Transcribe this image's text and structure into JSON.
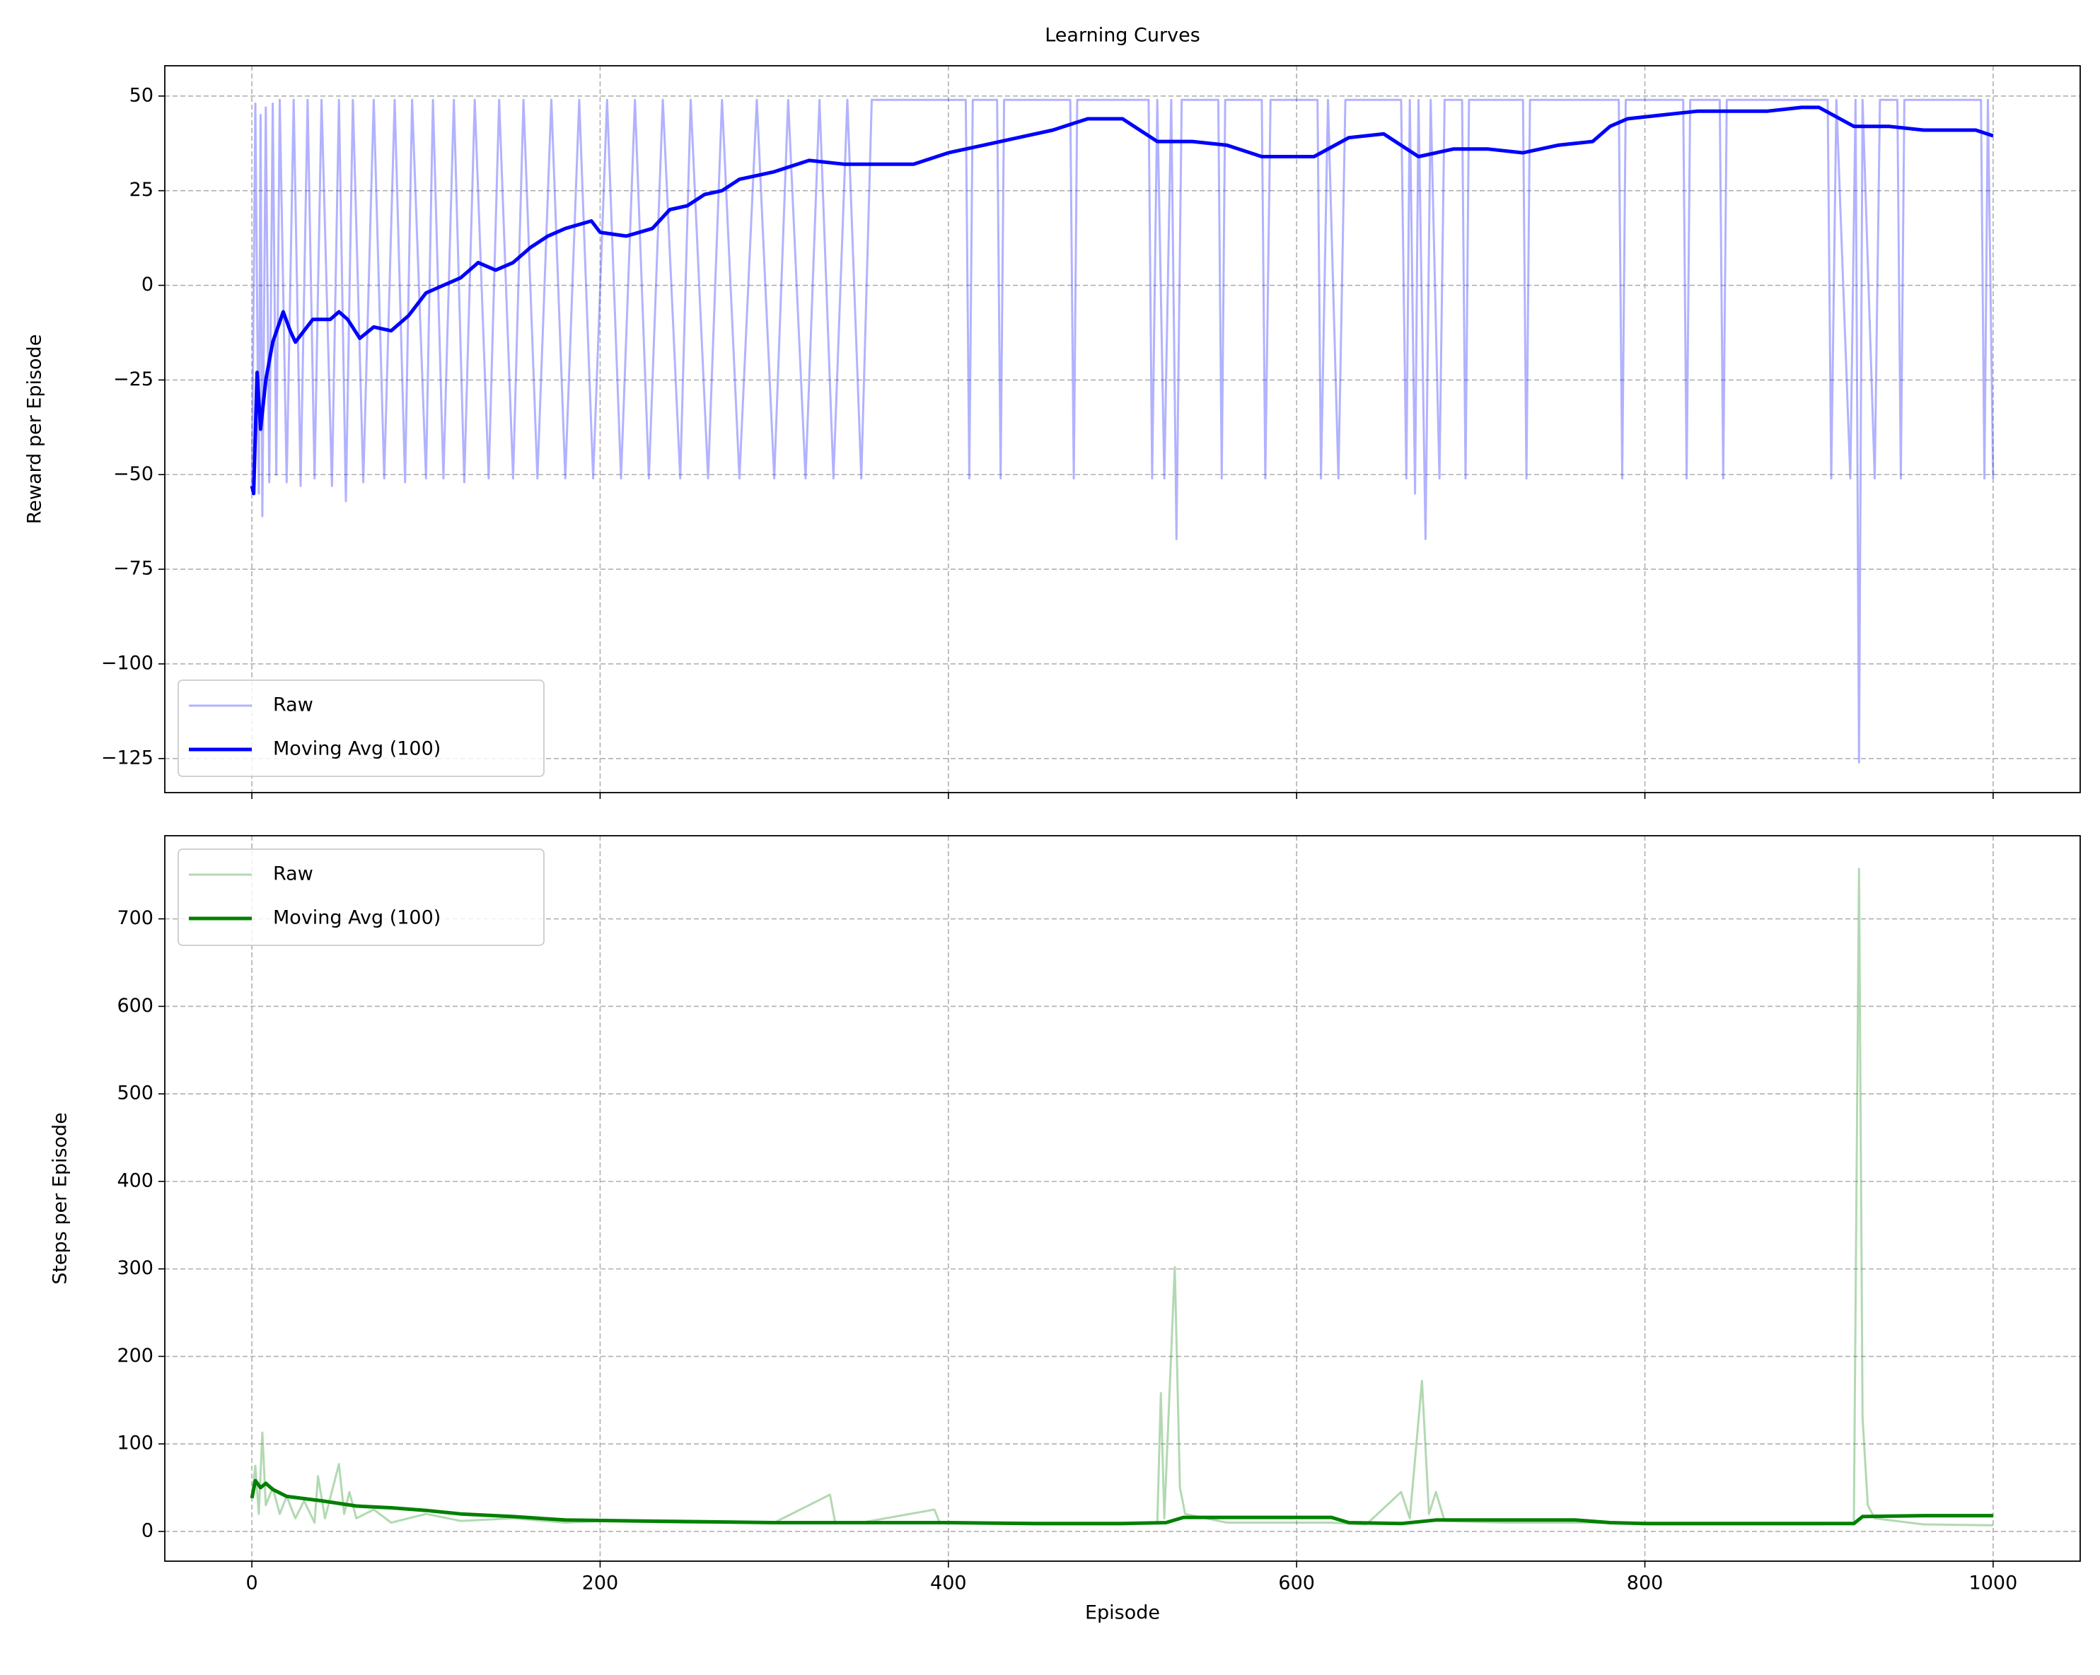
{
  "chart_data": [
    {
      "type": "line",
      "title": "Learning Curves",
      "ylabel": "Reward per Episode",
      "xlim": [
        -50,
        1050
      ],
      "xticks": [
        0,
        200,
        400,
        600,
        800,
        1000
      ],
      "show_xtick_labels": false,
      "ylim": [
        -134,
        58
      ],
      "yticks": [
        {
          "value": -125,
          "label": "−125"
        },
        {
          "value": -100,
          "label": "−100"
        },
        {
          "value": -75,
          "label": "−75"
        },
        {
          "value": -50,
          "label": "−50"
        },
        {
          "value": -25,
          "label": "−25"
        },
        0,
        25,
        50
      ],
      "grid": true,
      "legend": "lower left",
      "series": [
        {
          "name": "Raw",
          "color": "#0000ff",
          "opacity": 0.3,
          "x": [
            0,
            2,
            4,
            5,
            6,
            8,
            10,
            12,
            14,
            16,
            20,
            24,
            28,
            32,
            36,
            40,
            46,
            50,
            54,
            58,
            64,
            70,
            76,
            82,
            88,
            92,
            100,
            104,
            110,
            116,
            122,
            128,
            136,
            142,
            150,
            156,
            164,
            172,
            180,
            188,
            196,
            204,
            212,
            220,
            228,
            236,
            246,
            252,
            262,
            270,
            280,
            290,
            300,
            308,
            318,
            326,
            334,
            342,
            350,
            356,
            410,
            412,
            414,
            428,
            430,
            432,
            470,
            472,
            474,
            515,
            517,
            520,
            524,
            528,
            531,
            534,
            555,
            557,
            559,
            580,
            582,
            585,
            612,
            614,
            618,
            624,
            628,
            660,
            663,
            665,
            668,
            670,
            674,
            677,
            682,
            685,
            695,
            697,
            699,
            730,
            732,
            734,
            785,
            787,
            789,
            822,
            824,
            826,
            843,
            845,
            847,
            905,
            907,
            910,
            918,
            921,
            923,
            925,
            932,
            935,
            945,
            947,
            949,
            993,
            995,
            997,
            1000
          ],
          "values": [
            -53,
            48,
            -55,
            45,
            -61,
            47,
            -52,
            48,
            -50,
            49,
            -52,
            49,
            -53,
            49,
            -51,
            49,
            -53,
            49,
            -57,
            49,
            -52,
            49,
            -51,
            49,
            -52,
            49,
            -51,
            49,
            -51,
            49,
            -52,
            49,
            -51,
            49,
            -51,
            49,
            -51,
            49,
            -51,
            49,
            -51,
            49,
            -51,
            49,
            -51,
            49,
            -51,
            49,
            -51,
            49,
            -51,
            49,
            -51,
            49,
            -51,
            49,
            -51,
            49,
            -51,
            49,
            49,
            -51,
            49,
            49,
            -51,
            49,
            49,
            -51,
            49,
            49,
            -51,
            49,
            -51,
            49,
            -67,
            49,
            49,
            -51,
            49,
            49,
            -51,
            49,
            49,
            -51,
            49,
            -51,
            49,
            49,
            -51,
            49,
            -55,
            49,
            -67,
            49,
            -51,
            49,
            49,
            -51,
            49,
            49,
            -51,
            49,
            49,
            -51,
            49,
            49,
            -51,
            49,
            49,
            -51,
            49,
            49,
            -51,
            49,
            -51,
            49,
            -126,
            49,
            -51,
            49,
            49,
            -51,
            49,
            49,
            -51,
            49,
            -51
          ]
        },
        {
          "name": "Moving Avg (100)",
          "color": "#0000ff",
          "opacity": 1,
          "x": [
            0,
            1,
            3,
            5,
            8,
            12,
            18,
            22,
            25,
            30,
            35,
            45,
            50,
            55,
            62,
            70,
            80,
            90,
            100,
            110,
            120,
            130,
            140,
            150,
            160,
            170,
            180,
            195,
            200,
            215,
            230,
            240,
            250,
            260,
            270,
            280,
            290,
            300,
            320,
            340,
            350,
            380,
            400,
            420,
            440,
            460,
            480,
            500,
            520,
            540,
            560,
            580,
            610,
            630,
            650,
            670,
            690,
            710,
            730,
            750,
            770,
            780,
            790,
            810,
            830,
            850,
            870,
            890,
            900,
            920,
            940,
            960,
            990,
            1000
          ],
          "values": [
            -53,
            -55,
            -23,
            -38,
            -25,
            -15,
            -7,
            -12,
            -15,
            -12,
            -9,
            -9,
            -7,
            -9,
            -14,
            -11,
            -12,
            -8,
            -2,
            0,
            2,
            6,
            4,
            6,
            10,
            13,
            15,
            17,
            14,
            13,
            15,
            20,
            21,
            24,
            25,
            28,
            29,
            30,
            33,
            32,
            32,
            32,
            35,
            37,
            39,
            41,
            44,
            44,
            38,
            38,
            37,
            34,
            34,
            39,
            40,
            34,
            36,
            36,
            35,
            37,
            38,
            42,
            44,
            45,
            46,
            46,
            46,
            47,
            47,
            42,
            42,
            41,
            41,
            39.5
          ]
        }
      ]
    },
    {
      "type": "line",
      "ylabel": "Steps per Episode",
      "xlabel": "Episode",
      "xlim": [
        -50,
        1050
      ],
      "xticks": [
        0,
        200,
        400,
        600,
        800,
        1000
      ],
      "show_xtick_labels": true,
      "ylim": [
        -34,
        795
      ],
      "yticks": [
        0,
        100,
        200,
        300,
        400,
        500,
        600,
        700
      ],
      "grid": true,
      "legend": "upper left",
      "series": [
        {
          "name": "Raw",
          "color": "#008000",
          "opacity": 0.3,
          "x": [
            0,
            2,
            4,
            6,
            8,
            12,
            16,
            20,
            25,
            30,
            36,
            38,
            42,
            50,
            53,
            56,
            60,
            70,
            80,
            100,
            120,
            150,
            180,
            200,
            250,
            300,
            332,
            335,
            350,
            392,
            395,
            450,
            500,
            520,
            522,
            524,
            530,
            533,
            536,
            560,
            600,
            620,
            640,
            660,
            665,
            672,
            676,
            680,
            685,
            720,
            780,
            800,
            850,
            900,
            920,
            923,
            925,
            928,
            932,
            960,
            1000
          ],
          "values": [
            40,
            75,
            20,
            113,
            30,
            50,
            20,
            40,
            15,
            35,
            10,
            63,
            15,
            77,
            20,
            45,
            15,
            25,
            10,
            20,
            12,
            15,
            10,
            12,
            10,
            10,
            42,
            10,
            10,
            25,
            10,
            8,
            8,
            10,
            158,
            15,
            302,
            50,
            20,
            10,
            10,
            10,
            8,
            45,
            15,
            172,
            20,
            45,
            12,
            10,
            10,
            8,
            8,
            8,
            10,
            757,
            130,
            30,
            15,
            8,
            7
          ]
        },
        {
          "name": "Moving Avg (100)",
          "color": "#008000",
          "opacity": 1,
          "x": [
            0,
            2,
            5,
            8,
            12,
            20,
            40,
            60,
            80,
            100,
            120,
            150,
            180,
            220,
            260,
            300,
            350,
            400,
            450,
            500,
            525,
            535,
            580,
            620,
            630,
            660,
            680,
            720,
            760,
            780,
            800,
            900,
            920,
            925,
            960,
            1000
          ],
          "values": [
            38,
            58,
            50,
            55,
            48,
            40,
            35,
            29,
            27,
            24,
            20,
            17,
            13,
            12,
            11,
            10,
            10,
            10,
            9,
            9,
            10,
            16,
            16,
            16,
            10,
            9,
            13,
            13,
            13,
            10,
            9,
            9,
            9,
            17,
            18,
            18
          ]
        }
      ]
    }
  ]
}
